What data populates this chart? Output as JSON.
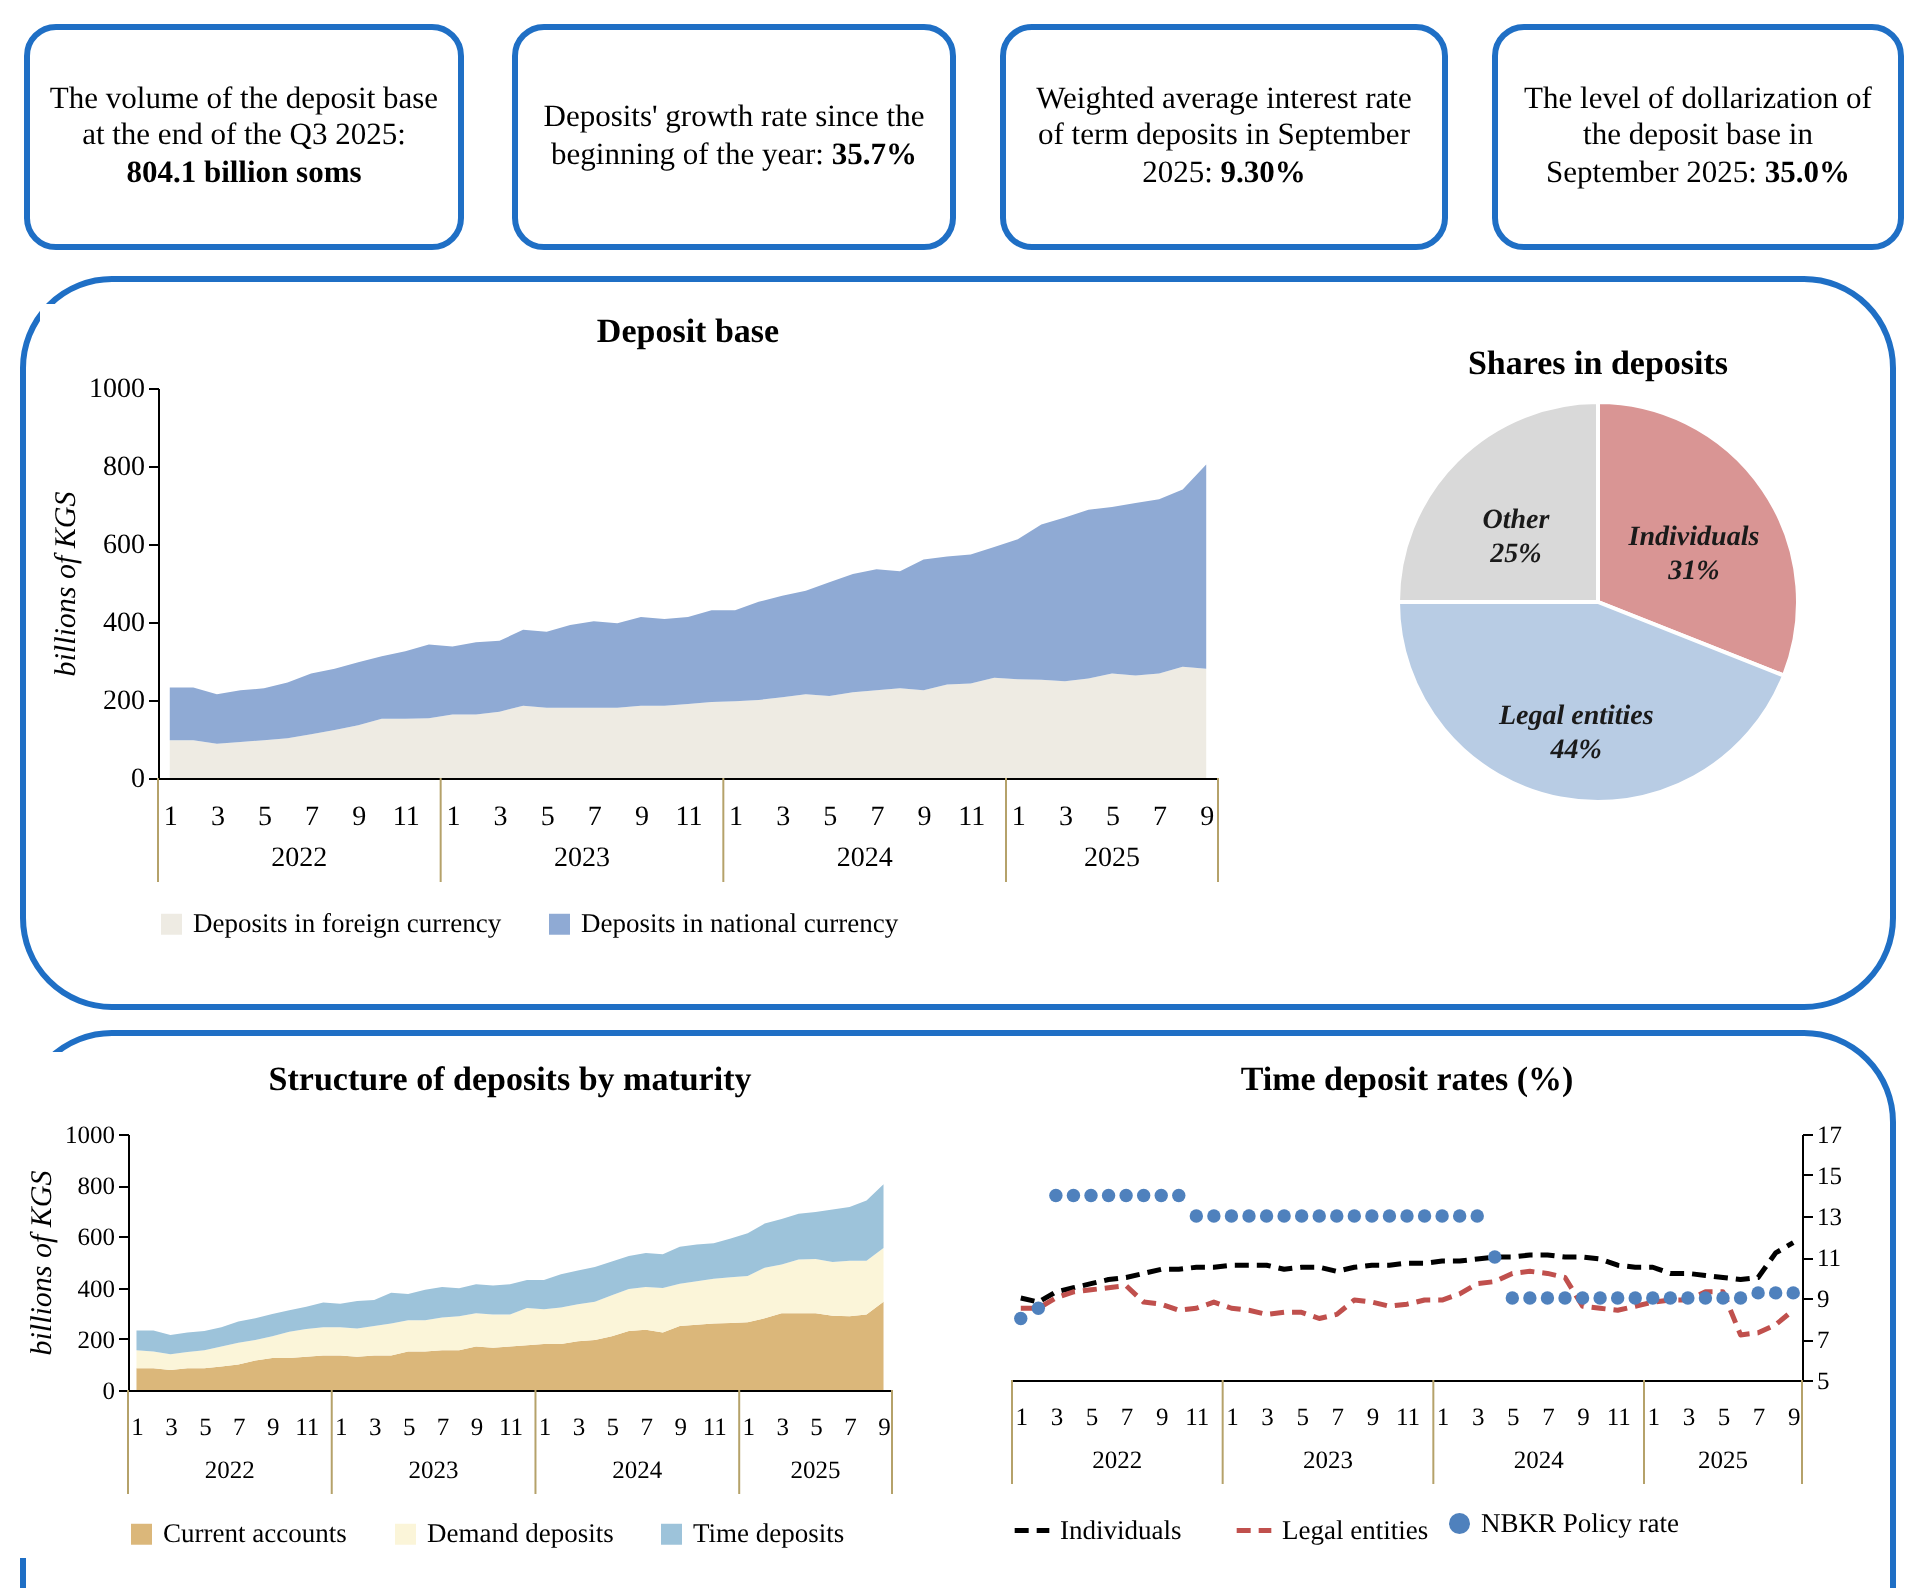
{
  "chart_data": [
    {
      "type": "other",
      "annotations": [
        "The volume of the deposit base at the end of the Q3 2025:",
        "804.1 billion soms"
      ]
    },
    {
      "type": "other",
      "annotations": [
        "Deposits' growth rate since the beginning of the year:",
        "35.7%"
      ]
    },
    {
      "type": "other",
      "annotations": [
        "Weighted average interest rate of term deposits in September 2025:",
        "9.30%"
      ]
    },
    {
      "type": "other",
      "annotations": [
        "The level of dollarization of the deposit base in September 2025:",
        "35.0%"
      ]
    },
    {
      "type": "area",
      "title": "Deposit base",
      "ylabel": "billions of KGS",
      "stacked": true,
      "legend": "bottom",
      "ylim": [
        0,
        1000
      ],
      "yticks": [
        0,
        200,
        400,
        600,
        800,
        1000
      ],
      "annotations": [
        "2022",
        "2023",
        "2024",
        "2025"
      ],
      "categories": [
        "1",
        null,
        "3",
        null,
        "5",
        null,
        "7",
        null,
        "9",
        null,
        "11",
        null,
        "1",
        null,
        "3",
        null,
        "5",
        null,
        "7",
        null,
        "9",
        null,
        "11",
        null,
        "1",
        null,
        "3",
        null,
        "5",
        null,
        "7",
        null,
        "9",
        null,
        "11",
        null,
        "1",
        null,
        "3",
        null,
        "5",
        null,
        "7",
        null,
        "9"
      ],
      "series": [
        {
          "name": "Deposits in foreign currency",
          "color": "#eeebe3",
          "values": [
            97,
            97,
            88,
            92,
            97,
            102,
            112,
            123,
            135,
            152,
            152,
            153,
            163,
            163,
            170,
            185,
            180,
            180,
            180,
            180,
            185,
            185,
            190,
            195,
            197,
            200,
            207,
            215,
            210,
            220,
            225,
            230,
            225,
            240,
            242,
            257,
            253,
            252,
            248,
            255,
            268,
            263,
            268,
            285,
            280
          ]
        },
        {
          "name": "Deposits in national currency",
          "color": "#8faad4",
          "values": [
            135,
            135,
            127,
            133,
            133,
            143,
            156,
            157,
            162,
            160,
            173,
            189,
            174,
            185,
            182,
            195,
            195,
            212,
            222,
            217,
            228,
            223,
            223,
            235,
            233,
            252,
            260,
            265,
            292,
            303,
            310,
            300,
            335,
            328,
            331,
            335,
            359,
            398,
            420,
            433,
            427,
            442,
            447,
            455,
            524
          ]
        }
      ]
    },
    {
      "type": "pie",
      "title": "Shares in deposits",
      "categories": [
        "Individuals",
        "Legal entities",
        "Other"
      ],
      "values": [
        31,
        44,
        25
      ],
      "colors": [
        "#d99594",
        "#b8cce4",
        "#d9d9d9"
      ],
      "value_labels": [
        "31%",
        "44%",
        "25%"
      ]
    },
    {
      "type": "area",
      "title": "Structure of deposits by maturity",
      "ylabel": "billions of KGS",
      "stacked": true,
      "legend": "bottom",
      "ylim": [
        0,
        1000
      ],
      "yticks": [
        0,
        200,
        400,
        600,
        800,
        1000
      ],
      "annotations": [
        "2022",
        "2023",
        "2024",
        "2025"
      ],
      "categories": [
        "1",
        null,
        "3",
        null,
        "5",
        null,
        "7",
        null,
        "9",
        null,
        "11",
        null,
        "1",
        null,
        "3",
        null,
        "5",
        null,
        "7",
        null,
        "9",
        null,
        "11",
        null,
        "1",
        null,
        "3",
        null,
        "5",
        null,
        "7",
        null,
        "9",
        null,
        "11",
        null,
        "1",
        null,
        "3",
        null,
        "5",
        null,
        "7",
        null,
        "9"
      ],
      "series": [
        {
          "name": "Current accounts",
          "color": "#dbb77a",
          "values": [
            85,
            85,
            78,
            85,
            85,
            92,
            100,
            115,
            125,
            125,
            130,
            135,
            135,
            130,
            135,
            135,
            150,
            150,
            155,
            155,
            170,
            165,
            170,
            175,
            180,
            180,
            190,
            195,
            210,
            230,
            235,
            225,
            250,
            255,
            260,
            262,
            265,
            280,
            300,
            300,
            300,
            290,
            288,
            295,
            345
          ]
        },
        {
          "name": "Demand deposits",
          "color": "#fbf5d9",
          "values": [
            70,
            65,
            62,
            63,
            70,
            78,
            85,
            80,
            85,
            103,
            108,
            110,
            110,
            110,
            115,
            125,
            122,
            122,
            128,
            133,
            130,
            130,
            125,
            145,
            135,
            142,
            145,
            150,
            160,
            165,
            167,
            173,
            165,
            170,
            175,
            178,
            180,
            198,
            190,
            210,
            212,
            210,
            217,
            210,
            210
          ]
        },
        {
          "name": "Time deposits",
          "color": "#9dc3da",
          "values": [
            77,
            82,
            75,
            77,
            75,
            75,
            83,
            85,
            87,
            84,
            87,
            97,
            92,
            108,
            102,
            120,
            103,
            120,
            119,
            109,
            113,
            113,
            118,
            110,
            115,
            130,
            132,
            135,
            132,
            128,
            133,
            132,
            145,
            143,
            138,
            152,
            167,
            172,
            178,
            178,
            183,
            205,
            210,
            235,
            249
          ]
        }
      ]
    },
    {
      "type": "line",
      "title": "Time deposit rates (%)",
      "line_style": "dashed",
      "legend": "bottom",
      "y2lim": [
        5,
        17
      ],
      "y2ticks": [
        5,
        7,
        9,
        11,
        13,
        15,
        17
      ],
      "annotations": [
        "2022",
        "2023",
        "2024",
        "2025"
      ],
      "categories": [
        "1",
        null,
        "3",
        null,
        "5",
        null,
        "7",
        null,
        "9",
        null,
        "11",
        null,
        "1",
        null,
        "3",
        null,
        "5",
        null,
        "7",
        null,
        "9",
        null,
        "11",
        null,
        "1",
        null,
        "3",
        null,
        "5",
        null,
        "7",
        null,
        "9",
        null,
        "11",
        null,
        "1",
        null,
        "3",
        null,
        "5",
        null,
        "7",
        null,
        "9"
      ],
      "series": [
        {
          "name": "Individuals",
          "color": "#000000",
          "axis": "y2",
          "values": [
            9.0,
            8.8,
            9.3,
            9.5,
            9.7,
            9.9,
            10.0,
            10.2,
            10.4,
            10.4,
            10.5,
            10.5,
            10.6,
            10.6,
            10.6,
            10.4,
            10.5,
            10.5,
            10.3,
            10.5,
            10.6,
            10.6,
            10.7,
            10.7,
            10.8,
            10.8,
            10.9,
            11.0,
            11.0,
            11.1,
            11.1,
            11.0,
            11.0,
            10.9,
            10.6,
            10.5,
            10.5,
            10.2,
            10.2,
            10.1,
            10.0,
            9.9,
            10.0,
            11.2,
            11.7
          ]
        },
        {
          "name": "Legal entities",
          "color": "#c0504d",
          "axis": "y2",
          "values": [
            8.5,
            8.5,
            9.0,
            9.3,
            9.4,
            9.5,
            9.6,
            8.8,
            8.7,
            8.4,
            8.5,
            8.8,
            8.5,
            8.4,
            8.2,
            8.3,
            8.3,
            8.0,
            8.2,
            8.9,
            8.8,
            8.6,
            8.7,
            8.9,
            8.9,
            9.2,
            9.7,
            9.8,
            10.2,
            10.3,
            10.2,
            10.0,
            8.6,
            8.5,
            8.4,
            8.6,
            8.8,
            8.9,
            8.9,
            9.3,
            9.3,
            7.2,
            7.3,
            7.7,
            8.4
          ]
        },
        {
          "name": "NBKR Policy rate",
          "color": "#4f81bd",
          "axis": "y2",
          "type": "scatter",
          "marker": "circle",
          "values": [
            8,
            8.5,
            14,
            14,
            14,
            14,
            14,
            14,
            14,
            14,
            13,
            13,
            13,
            13,
            13,
            13,
            13,
            13,
            13,
            13,
            13,
            13,
            13,
            13,
            13,
            13,
            13,
            11,
            9,
            9,
            9,
            9,
            9,
            9,
            9,
            9,
            9,
            9,
            9,
            9,
            9,
            9,
            9.25,
            9.25,
            9.25
          ]
        }
      ]
    }
  ]
}
